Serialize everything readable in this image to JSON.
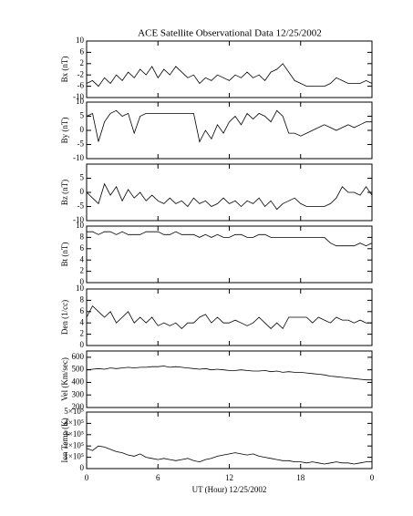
{
  "title": "ACE Satellite Observational Data   12/25/2002",
  "chart_data": [
    {
      "type": "line",
      "ylabel": "Bx (nT)",
      "ylim": [
        -10,
        10
      ],
      "yticks": [
        -10,
        -6,
        -2,
        2,
        6,
        10
      ],
      "xlim": [
        0,
        24
      ],
      "color": "#000000",
      "x": [
        0,
        0.5,
        1,
        1.5,
        2,
        2.5,
        3,
        3.5,
        4,
        4.5,
        5,
        5.5,
        6,
        6.5,
        7,
        7.5,
        8,
        8.5,
        9,
        9.5,
        10,
        10.5,
        11,
        11.5,
        12,
        12.5,
        13,
        13.5,
        14,
        14.5,
        15,
        15.5,
        16,
        16.5,
        17,
        17.5,
        18,
        18.5,
        19,
        19.5,
        20,
        20.5,
        21,
        21.5,
        22,
        22.5,
        23,
        23.5,
        24
      ],
      "values": [
        -5,
        -4,
        -6,
        -3,
        -5,
        -2,
        -4,
        -1,
        -3,
        0,
        -2,
        1,
        -3,
        0,
        -2,
        1,
        -1,
        -3,
        -2,
        -5,
        -3,
        -4,
        -2,
        -3,
        -4,
        -2,
        -3,
        -1,
        -3,
        -2,
        -4,
        -1,
        0,
        2,
        -1,
        -4,
        -5,
        -6,
        -6,
        -6,
        -6,
        -5,
        -3,
        -4,
        -5,
        -5,
        -5,
        -4,
        -5
      ]
    },
    {
      "type": "line",
      "ylabel": "By (nT)",
      "ylim": [
        -10,
        10
      ],
      "yticks": [
        -10,
        -5,
        0,
        5,
        10
      ],
      "xlim": [
        0,
        24
      ],
      "color": "#000000",
      "x": [
        0,
        0.5,
        1,
        1.5,
        2,
        2.5,
        3,
        3.5,
        4,
        4.5,
        5,
        5.5,
        6,
        6.5,
        7,
        7.5,
        8,
        8.5,
        9,
        9.5,
        10,
        10.5,
        11,
        11.5,
        12,
        12.5,
        13,
        13.5,
        14,
        14.5,
        15,
        15.5,
        16,
        16.5,
        17,
        17.5,
        18,
        18.5,
        19,
        19.5,
        20,
        20.5,
        21,
        21.5,
        22,
        22.5,
        23,
        23.5,
        24
      ],
      "values": [
        5,
        6,
        -4,
        3,
        6,
        7,
        5,
        6,
        -1,
        5,
        6,
        6,
        6,
        6,
        6,
        6,
        6,
        6,
        6,
        -4,
        0,
        -3,
        2,
        -1,
        3,
        5,
        2,
        6,
        4,
        6,
        5,
        3,
        7,
        5,
        -1,
        -1,
        -2,
        -1,
        0,
        1,
        2,
        1,
        0,
        1,
        2,
        1,
        2,
        3,
        3
      ]
    },
    {
      "type": "line",
      "ylabel": "Bz (nT)",
      "ylim": [
        -10,
        10
      ],
      "yticks": [
        -10,
        -5,
        0,
        5
      ],
      "xlim": [
        0,
        24
      ],
      "color": "#000000",
      "x": [
        0,
        0.5,
        1,
        1.5,
        2,
        2.5,
        3,
        3.5,
        4,
        4.5,
        5,
        5.5,
        6,
        6.5,
        7,
        7.5,
        8,
        8.5,
        9,
        9.5,
        10,
        10.5,
        11,
        11.5,
        12,
        12.5,
        13,
        13.5,
        14,
        14.5,
        15,
        15.5,
        16,
        16.5,
        17,
        17.5,
        18,
        18.5,
        19,
        19.5,
        20,
        20.5,
        21,
        21.5,
        22,
        22.5,
        23,
        23.5,
        24
      ],
      "values": [
        0,
        -2,
        -4,
        3,
        -1,
        2,
        -3,
        1,
        -2,
        0,
        -3,
        -1,
        -3,
        -4,
        -2,
        -4,
        -3,
        -5,
        -2,
        -4,
        -3,
        -5,
        -4,
        -2,
        -4,
        -3,
        -5,
        -3,
        -4,
        -2,
        -5,
        -3,
        -6,
        -4,
        -3,
        -2,
        -4,
        -5,
        -5,
        -5,
        -5,
        -4,
        -2,
        2,
        0,
        0,
        -1,
        2,
        -1
      ]
    },
    {
      "type": "line",
      "ylabel": "Bt (nT)",
      "ylim": [
        0,
        10
      ],
      "yticks": [
        0,
        2,
        4,
        6,
        8,
        10
      ],
      "xlim": [
        0,
        24
      ],
      "color": "#000000",
      "x": [
        0,
        0.5,
        1,
        1.5,
        2,
        2.5,
        3,
        3.5,
        4,
        4.5,
        5,
        5.5,
        6,
        6.5,
        7,
        7.5,
        8,
        8.5,
        9,
        9.5,
        10,
        10.5,
        11,
        11.5,
        12,
        12.5,
        13,
        13.5,
        14,
        14.5,
        15,
        15.5,
        16,
        16.5,
        17,
        17.5,
        18,
        18.5,
        19,
        19.5,
        20,
        20.5,
        21,
        21.5,
        22,
        22.5,
        23,
        23.5,
        24
      ],
      "values": [
        9,
        9,
        8.5,
        9,
        9,
        8.5,
        9,
        8.5,
        8.5,
        8.5,
        9,
        9,
        9,
        8.5,
        8.5,
        9,
        8.5,
        8.5,
        8.5,
        8,
        8.5,
        8,
        8.5,
        8,
        8,
        8.5,
        8.5,
        8,
        8,
        8.5,
        8.5,
        8,
        8,
        8,
        8,
        8,
        8,
        8,
        8,
        8,
        8,
        7,
        6.5,
        6.5,
        6.5,
        6.5,
        7,
        6.5,
        7
      ]
    },
    {
      "type": "line",
      "ylabel": "Den (1/cc)",
      "ylim": [
        0,
        10
      ],
      "yticks": [
        0,
        2,
        4,
        6,
        8,
        10
      ],
      "xlim": [
        0,
        24
      ],
      "color": "#000000",
      "x": [
        0,
        0.5,
        1,
        1.5,
        2,
        2.5,
        3,
        3.5,
        4,
        4.5,
        5,
        5.5,
        6,
        6.5,
        7,
        7.5,
        8,
        8.5,
        9,
        9.5,
        10,
        10.5,
        11,
        11.5,
        12,
        12.5,
        13,
        13.5,
        14,
        14.5,
        15,
        15.5,
        16,
        16.5,
        17,
        17.5,
        18,
        18.5,
        19,
        19.5,
        20,
        20.5,
        21,
        21.5,
        22,
        22.5,
        23,
        23.5,
        24
      ],
      "values": [
        5,
        7,
        6,
        5,
        6,
        4,
        5,
        6,
        4,
        5,
        4,
        5,
        3.5,
        4,
        3.5,
        4,
        3,
        4,
        4,
        5,
        5.5,
        4,
        5,
        4,
        4,
        4.5,
        4,
        3.5,
        4,
        5,
        4,
        3,
        4,
        3,
        5,
        5,
        5,
        5,
        4,
        5,
        4.5,
        4,
        5,
        4.5,
        4.5,
        4,
        4.5,
        4,
        4
      ]
    },
    {
      "type": "line",
      "ylabel": "Vel (Km/sec)",
      "ylim": [
        200,
        650
      ],
      "yticks": [
        200,
        300,
        400,
        500,
        600
      ],
      "xlim": [
        0,
        24
      ],
      "color": "#000000",
      "x": [
        0,
        0.5,
        1,
        1.5,
        2,
        2.5,
        3,
        3.5,
        4,
        4.5,
        5,
        5.5,
        6,
        6.5,
        7,
        7.5,
        8,
        8.5,
        9,
        9.5,
        10,
        10.5,
        11,
        11.5,
        12,
        12.5,
        13,
        13.5,
        14,
        14.5,
        15,
        15.5,
        16,
        16.5,
        17,
        17.5,
        18,
        18.5,
        19,
        19.5,
        20,
        20.5,
        21,
        21.5,
        22,
        22.5,
        23,
        23.5,
        24
      ],
      "values": [
        500,
        505,
        510,
        505,
        515,
        510,
        515,
        520,
        515,
        520,
        520,
        525,
        525,
        530,
        520,
        525,
        520,
        515,
        510,
        505,
        510,
        500,
        505,
        500,
        495,
        495,
        500,
        495,
        490,
        490,
        495,
        485,
        490,
        480,
        485,
        480,
        480,
        475,
        470,
        465,
        460,
        450,
        445,
        440,
        435,
        430,
        425,
        420,
        420
      ]
    },
    {
      "type": "line",
      "ylabel": "Ion Temp (K)",
      "ylim": [
        0,
        500000
      ],
      "yticks": [
        0,
        {
          "value": 100000,
          "label": "1×10⁵"
        },
        {
          "value": 200000,
          "label": "2×10⁵"
        },
        {
          "value": 300000,
          "label": "3×10⁵"
        },
        {
          "value": 400000,
          "label": "4×10⁵"
        },
        {
          "value": 500000,
          "label": "5×10⁵"
        }
      ],
      "xlim": [
        0,
        24
      ],
      "xticks": [
        0,
        6,
        12,
        18,
        {
          "value": 24,
          "label": "0"
        }
      ],
      "xlabel": "UT (Hour)  12/25/2002",
      "color": "#000000",
      "x": [
        0,
        0.5,
        1,
        1.5,
        2,
        2.5,
        3,
        3.5,
        4,
        4.5,
        5,
        5.5,
        6,
        6.5,
        7,
        7.5,
        8,
        8.5,
        9,
        9.5,
        10,
        10.5,
        11,
        11.5,
        12,
        12.5,
        13,
        13.5,
        14,
        14.5,
        15,
        15.5,
        16,
        16.5,
        17,
        17.5,
        18,
        18.5,
        19,
        19.5,
        20,
        20.5,
        21,
        21.5,
        22,
        22.5,
        23,
        23.5,
        24
      ],
      "values": [
        180000,
        160000,
        200000,
        190000,
        170000,
        150000,
        140000,
        120000,
        110000,
        130000,
        100000,
        90000,
        80000,
        90000,
        80000,
        70000,
        80000,
        90000,
        70000,
        60000,
        80000,
        90000,
        110000,
        120000,
        130000,
        140000,
        130000,
        120000,
        130000,
        110000,
        100000,
        90000,
        80000,
        70000,
        70000,
        60000,
        60000,
        50000,
        60000,
        50000,
        40000,
        50000,
        60000,
        50000,
        50000,
        40000,
        50000,
        60000,
        60000
      ]
    }
  ]
}
